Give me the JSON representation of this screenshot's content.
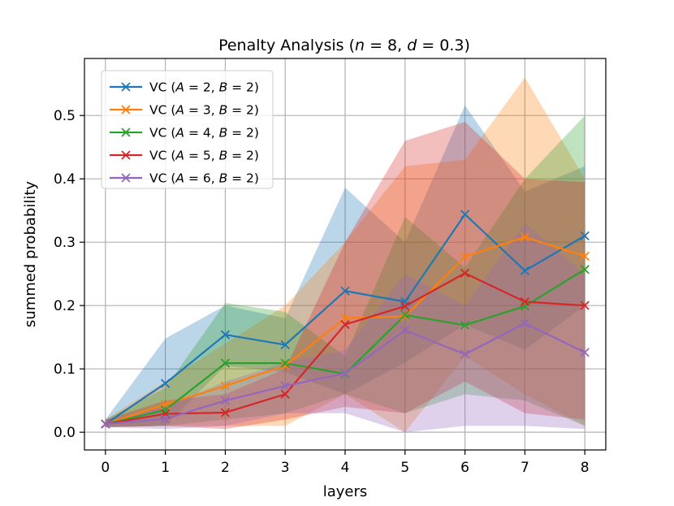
{
  "chart_data": {
    "type": "line",
    "title": "Penalty Analysis (n = 8, d = 0.3)",
    "title_parts": {
      "prefix": "Penalty Analysis (",
      "n_var": "n",
      "n_val": " = 8, ",
      "d_var": "d",
      "d_val": " = 0.3)"
    },
    "xlabel": "layers",
    "ylabel": "summed probability",
    "xlim": [
      -0.35,
      8.35
    ],
    "ylim": [
      -0.028,
      0.59
    ],
    "x": [
      0,
      1,
      2,
      3,
      4,
      5,
      6,
      7,
      8
    ],
    "xticks": [
      "0",
      "1",
      "2",
      "3",
      "4",
      "5",
      "6",
      "7",
      "8"
    ],
    "yticks": [
      {
        "value": 0.0,
        "label": "0.0"
      },
      {
        "value": 0.1,
        "label": "0.1"
      },
      {
        "value": 0.2,
        "label": "0.2"
      },
      {
        "value": 0.3,
        "label": "0.3"
      },
      {
        "value": 0.4,
        "label": "0.4"
      },
      {
        "value": 0.5,
        "label": "0.5"
      }
    ],
    "grid": true,
    "legend_position": "top-left",
    "series": [
      {
        "name": "VC (A = 2, B = 2)",
        "label_parts": {
          "prefix": "VC (",
          "a_var": "A",
          "a_val": " = 2, ",
          "b_var": "B",
          "b_val": " = 2)"
        },
        "color": "#1f77b4",
        "values": [
          0.013,
          0.077,
          0.154,
          0.138,
          0.223,
          0.206,
          0.344,
          0.255,
          0.31
        ],
        "upper": [
          0.02,
          0.148,
          0.2,
          0.18,
          0.386,
          0.3,
          0.516,
          0.38,
          0.42
        ],
        "lower": [
          0.008,
          0.01,
          0.105,
          0.095,
          0.06,
          0.11,
          0.17,
          0.13,
          0.2
        ]
      },
      {
        "name": "VC (A = 3, B = 2)",
        "label_parts": {
          "prefix": "VC (",
          "a_var": "A",
          "a_val": " = 3, ",
          "b_var": "B",
          "b_val": " = 2)"
        },
        "color": "#ff7f0e",
        "values": [
          0.013,
          0.044,
          0.073,
          0.105,
          0.18,
          0.183,
          0.277,
          0.308,
          0.278
        ],
        "upper": [
          0.02,
          0.08,
          0.14,
          0.2,
          0.3,
          0.42,
          0.43,
          0.56,
          0.4
        ],
        "lower": [
          0.008,
          0.01,
          0.01,
          0.01,
          0.06,
          0.0,
          0.12,
          0.06,
          0.01
        ]
      },
      {
        "name": "VC (A = 4, B = 2)",
        "label_parts": {
          "prefix": "VC (",
          "a_var": "A",
          "a_val": " = 4, ",
          "b_var": "B",
          "b_val": " = 2)"
        },
        "color": "#2ca02c",
        "values": [
          0.013,
          0.035,
          0.109,
          0.109,
          0.092,
          0.185,
          0.169,
          0.199,
          0.257
        ],
        "upper": [
          0.02,
          0.07,
          0.204,
          0.19,
          0.12,
          0.34,
          0.26,
          0.4,
          0.5
        ],
        "lower": [
          0.008,
          0.01,
          0.02,
          0.03,
          0.06,
          0.03,
          0.06,
          0.05,
          0.01
        ]
      },
      {
        "name": "VC (A = 5, B = 2)",
        "label_parts": {
          "prefix": "VC (",
          "a_var": "A",
          "a_val": " = 5, ",
          "b_var": "B",
          "b_val": " = 2)"
        },
        "color": "#d62728",
        "values": [
          0.013,
          0.029,
          0.031,
          0.06,
          0.17,
          0.199,
          0.251,
          0.206,
          0.2
        ],
        "upper": [
          0.02,
          0.05,
          0.06,
          0.1,
          0.3,
          0.46,
          0.49,
          0.4,
          0.395
        ],
        "lower": [
          0.008,
          0.01,
          0.005,
          0.02,
          0.04,
          0.03,
          0.08,
          0.03,
          0.02
        ]
      },
      {
        "name": "VC (A = 6, B = 2)",
        "label_parts": {
          "prefix": "VC (",
          "a_var": "A",
          "a_val": " = 6, ",
          "b_var": "B",
          "b_val": " = 2)"
        },
        "color": "#9467bd",
        "values": [
          0.013,
          0.021,
          0.05,
          0.073,
          0.093,
          0.161,
          0.123,
          0.172,
          0.126
        ],
        "upper": [
          0.02,
          0.04,
          0.08,
          0.11,
          0.13,
          0.25,
          0.2,
          0.33,
          0.25
        ],
        "lower": [
          0.008,
          0.005,
          0.01,
          0.03,
          0.03,
          0.0,
          0.01,
          0.01,
          0.005
        ]
      }
    ]
  }
}
